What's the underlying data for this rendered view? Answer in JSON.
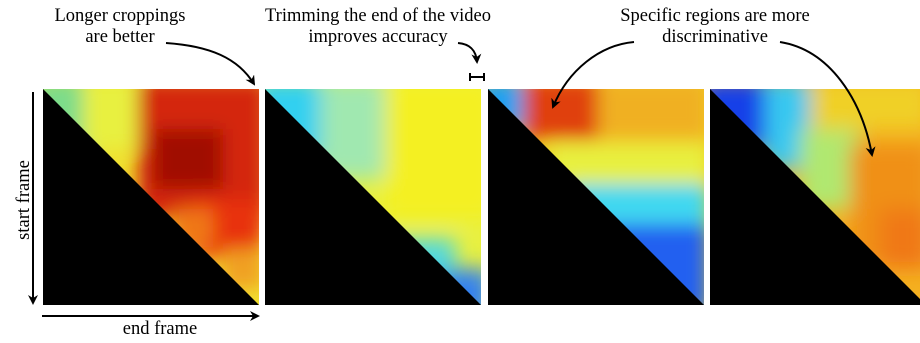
{
  "annotations": {
    "longer": [
      "Longer croppings",
      "are better"
    ],
    "trimming": [
      "Trimming the end of the video",
      "improves accuracy"
    ],
    "regions": [
      "Specific regions are more",
      "discriminative"
    ]
  },
  "axes": {
    "y_label": "start frame",
    "x_label": "end frame"
  },
  "colormap": "jet",
  "panel_count": 4
}
